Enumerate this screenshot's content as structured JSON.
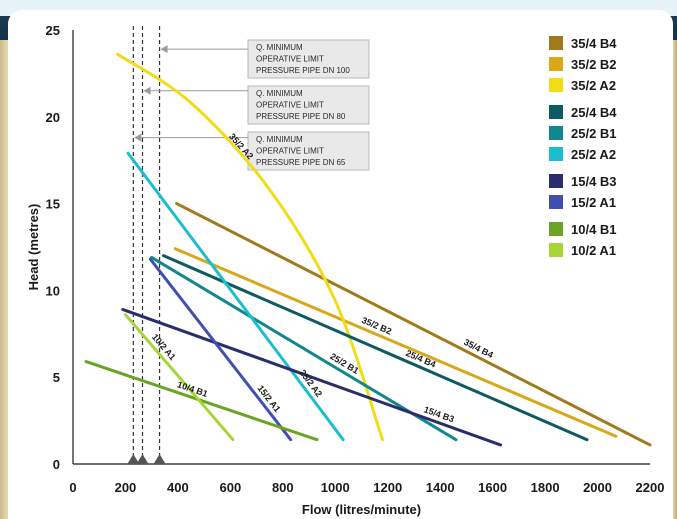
{
  "chart_data": {
    "type": "line",
    "xlabel": "Flow (litres/minute)",
    "ylabel": "Head (metres)",
    "xlim": [
      0,
      2200
    ],
    "ylim": [
      0,
      25
    ],
    "x_ticks": [
      "0",
      "200",
      "400",
      "600",
      "800",
      "1000",
      "1200",
      "1400",
      "1600",
      "1800",
      "2000",
      "2200"
    ],
    "y_ticks": [
      "0",
      "5",
      "10",
      "15",
      "20",
      "25"
    ],
    "grid": false,
    "legend_position": "top-right",
    "series": [
      {
        "name": "35/4 B4",
        "color": "#a07a1c",
        "group": 0,
        "label": "35/4 B4",
        "label_at": 0.63,
        "points": [
          [
            395,
            15.0
          ],
          [
            2200,
            1.1
          ]
        ]
      },
      {
        "name": "35/2 B2",
        "color": "#d9a81a",
        "group": 0,
        "label": "35/2 B2",
        "label_at": 0.45,
        "points": [
          [
            390,
            12.4
          ],
          [
            2070,
            1.6
          ]
        ]
      },
      {
        "name": "35/2 A2",
        "color": "#f2dc18",
        "group": 0,
        "label": "35/2 A2",
        "label_at": 0.32,
        "points": [
          [
            170,
            23.6
          ],
          [
            450,
            20.8
          ],
          [
            750,
            15.8
          ],
          [
            1000,
            9.4
          ],
          [
            1180,
            1.4
          ]
        ]
      },
      {
        "name": "25/4 B4",
        "color": "#0e5a63",
        "group": 1,
        "label": "25/4 B4",
        "label_at": 0.6,
        "points": [
          [
            345,
            12.0
          ],
          [
            1960,
            1.4
          ]
        ]
      },
      {
        "name": "25/2 B1",
        "color": "#10888e",
        "group": 1,
        "label": "25/2 B1",
        "label_at": 0.62,
        "points": [
          [
            300,
            11.9
          ],
          [
            1460,
            1.4
          ]
        ]
      },
      {
        "name": "25/2 A2",
        "color": "#1dbdd0",
        "group": 1,
        "label": "25/2 A2",
        "label_at": 0.82,
        "points": [
          [
            210,
            17.9
          ],
          [
            1030,
            1.4
          ]
        ]
      },
      {
        "name": "15/4 B3",
        "color": "#2a2d6e",
        "group": 2,
        "label": "15/4 B3",
        "label_at": 0.83,
        "points": [
          [
            190,
            8.9
          ],
          [
            1630,
            1.1
          ]
        ]
      },
      {
        "name": "15/2 A1",
        "color": "#3f50b0",
        "group": 2,
        "label": "15/2 A1",
        "label_at": 0.8,
        "points": [
          [
            295,
            11.8
          ],
          [
            830,
            1.4
          ]
        ]
      },
      {
        "name": "10/4 B1",
        "color": "#6aa325",
        "group": 3,
        "label": "10/4 B1",
        "label_at": 0.45,
        "points": [
          [
            50,
            5.9
          ],
          [
            930,
            1.4
          ]
        ]
      },
      {
        "name": "10/2 A1",
        "color": "#a6d636",
        "group": 3,
        "label": "10/2 A1",
        "label_at": 0.3,
        "points": [
          [
            200,
            8.6
          ],
          [
            610,
            1.4
          ]
        ]
      }
    ],
    "annotations": [
      {
        "x": 330,
        "lines": [
          "Q. MINIMUM",
          "OPERATIVE LIMIT",
          "PRESSURE PIPE DN 100"
        ],
        "arrow_y": 23.9
      },
      {
        "x": 265,
        "lines": [
          "Q. MINIMUM",
          "OPERATIVE LIMIT",
          "PRESSURE PIPE DN 80"
        ],
        "arrow_y": 21.5
      },
      {
        "x": 230,
        "lines": [
          "Q. MINIMUM",
          "OPERATIVE LIMIT",
          "PRESSURE PIPE DN 65"
        ],
        "arrow_y": 18.8
      }
    ]
  }
}
